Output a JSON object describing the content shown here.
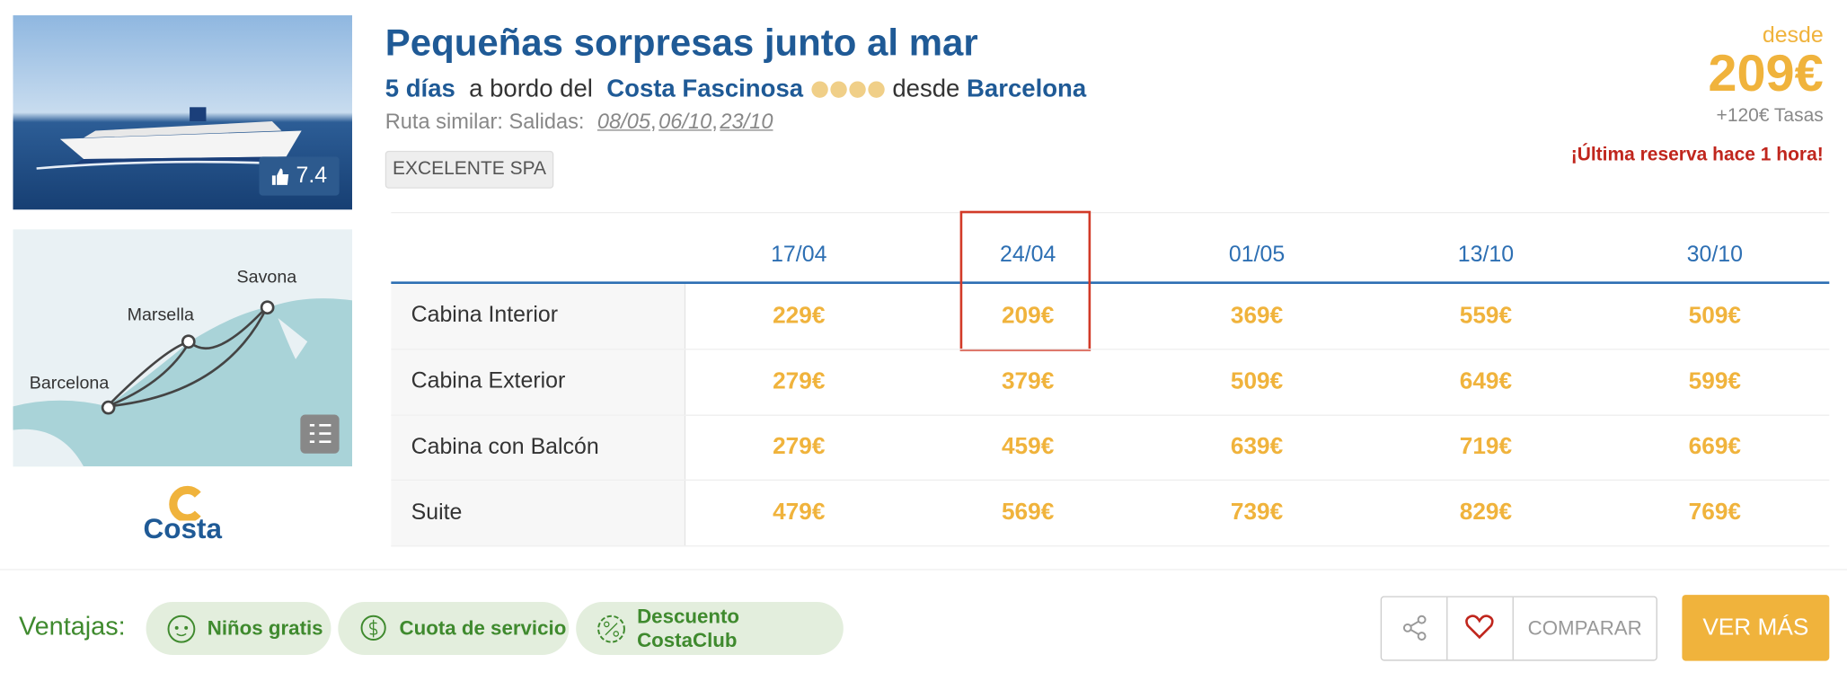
{
  "image": {
    "rating": "7.4"
  },
  "map": {
    "labels": [
      "Savona",
      "Marsella",
      "Barcelona"
    ]
  },
  "brand": "Costa",
  "header": {
    "title": "Pequeñas sorpresas junto al mar",
    "duration": "5 días",
    "aboard": "a bordo del",
    "ship": "Costa Fascinosa",
    "from": "desde",
    "port": "Barcelona",
    "route_label": "Ruta similar: Salidas:",
    "route_dates": [
      "08/05",
      "06/10",
      "23/10"
    ],
    "separator": ",",
    "tag": "EXCELENTE SPA"
  },
  "price": {
    "from_label": "desde",
    "amount": "209€",
    "taxes": "+120€ Tasas",
    "urgency": "¡Última reserva hace 1 hora!"
  },
  "table": {
    "columns": [
      "17/04",
      "24/04",
      "01/05",
      "13/10",
      "30/10"
    ],
    "rows": [
      {
        "label": "Cabina Interior",
        "prices": [
          "229€",
          "209€",
          "369€",
          "559€",
          "509€"
        ]
      },
      {
        "label": "Cabina Exterior",
        "prices": [
          "279€",
          "379€",
          "509€",
          "649€",
          "599€"
        ]
      },
      {
        "label": "Cabina con Balcón",
        "prices": [
          "279€",
          "459€",
          "639€",
          "719€",
          "669€"
        ]
      },
      {
        "label": "Suite",
        "prices": [
          "479€",
          "569€",
          "739€",
          "829€",
          "769€"
        ]
      }
    ]
  },
  "footer": {
    "label": "Ventajas:",
    "advantages": [
      "Niños gratis",
      "Cuota de servicio",
      "Descuento CostaClub"
    ],
    "compare": "COMPARAR",
    "cta": "VER MÁS"
  }
}
